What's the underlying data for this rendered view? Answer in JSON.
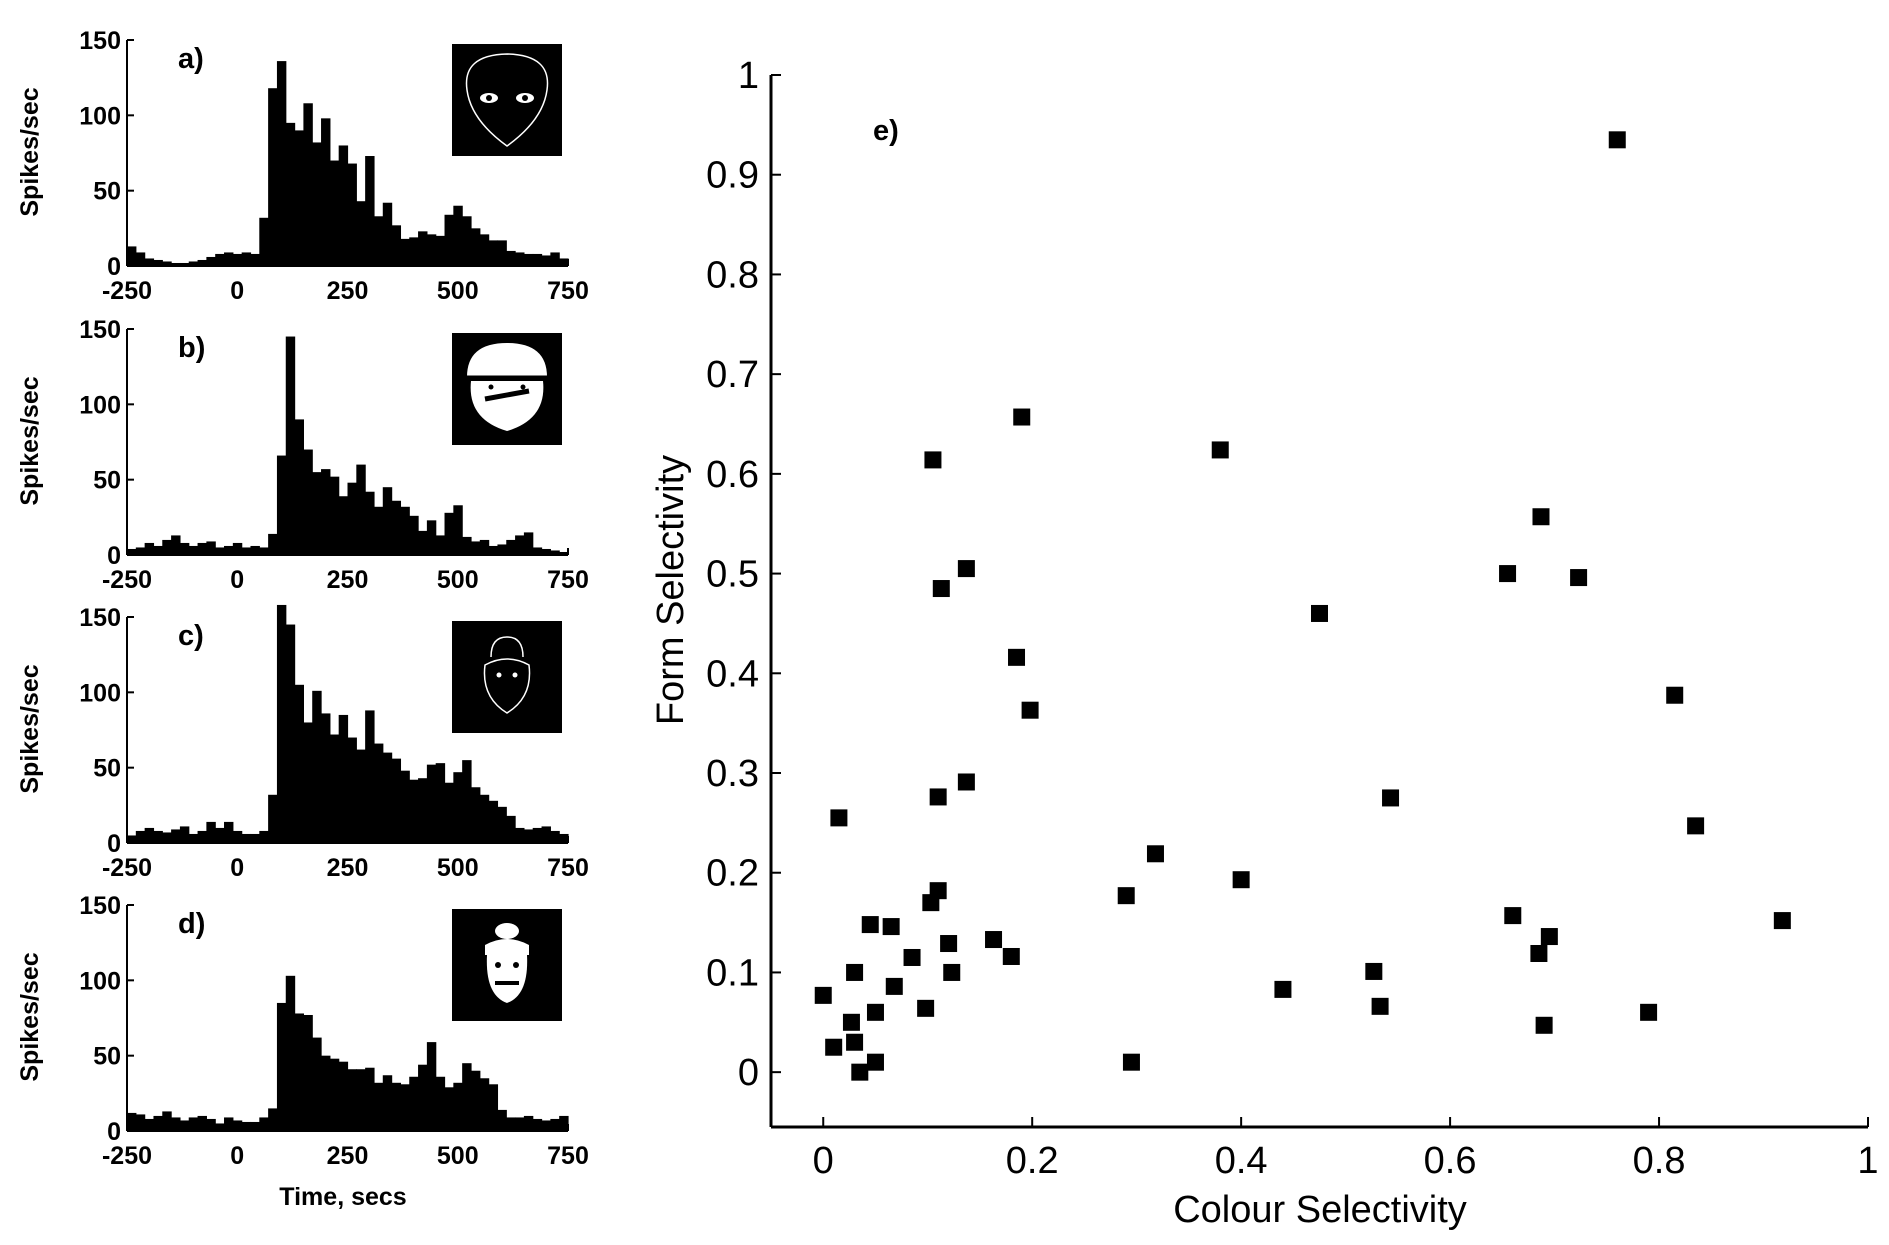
{
  "figure": {
    "histograms": {
      "ylabel": "Spikes/sec",
      "xlabel": "Time, secs",
      "xticks": [
        "-250",
        "0",
        "250",
        "500",
        "750"
      ],
      "yticks": [
        "0",
        "50",
        "100",
        "150"
      ],
      "xlim": [
        -250,
        750
      ],
      "ylim": [
        0,
        150
      ],
      "bin_width": 20
    },
    "scatter": {
      "xlabel": "Colour Selectivity",
      "ylabel": "Form Selectivity",
      "xticks": [
        "0",
        "0.2",
        "0.4",
        "0.6",
        "0.8",
        "1"
      ],
      "yticks": [
        "0",
        "0.1",
        "0.2",
        "0.3",
        "0.4",
        "0.5",
        "0.6",
        "0.7",
        "0.8",
        "0.9",
        "1"
      ],
      "xlim": [
        -0.05,
        1.0
      ],
      "ylim": [
        -0.055,
        1.0
      ]
    }
  },
  "chart_data": [
    {
      "type": "bar",
      "panel_label": "a)",
      "image": "face-outline-with-eyes",
      "x": [
        -250,
        -230,
        -210,
        -190,
        -170,
        -150,
        -130,
        -110,
        -90,
        -70,
        -50,
        -30,
        -10,
        10,
        30,
        50,
        70,
        90,
        110,
        130,
        150,
        170,
        190,
        210,
        230,
        250,
        270,
        290,
        310,
        330,
        350,
        370,
        390,
        410,
        430,
        450,
        470,
        490,
        510,
        530,
        550,
        570,
        590,
        610,
        630,
        650,
        670,
        690,
        710,
        730
      ],
      "values": [
        13,
        9,
        5,
        4,
        3,
        2,
        2,
        3,
        4,
        6,
        8,
        9,
        8,
        9,
        8,
        32,
        118,
        136,
        95,
        90,
        108,
        82,
        98,
        70,
        80,
        68,
        43,
        73,
        33,
        42,
        27,
        18,
        19,
        23,
        21,
        20,
        34,
        40,
        33,
        25,
        21,
        17,
        17,
        10,
        9,
        8,
        8,
        7,
        9,
        5
      ]
    },
    {
      "type": "bar",
      "panel_label": "b)",
      "image": "face-with-hat-and-mouth",
      "x": [
        -250,
        -230,
        -210,
        -190,
        -170,
        -150,
        -130,
        -110,
        -90,
        -70,
        -50,
        -30,
        -10,
        10,
        30,
        50,
        70,
        90,
        110,
        130,
        150,
        170,
        190,
        210,
        230,
        250,
        270,
        290,
        310,
        330,
        350,
        370,
        390,
        410,
        430,
        450,
        470,
        490,
        510,
        530,
        550,
        570,
        590,
        610,
        630,
        650,
        670,
        690,
        710,
        730
      ],
      "values": [
        4,
        5,
        8,
        6,
        10,
        13,
        8,
        6,
        8,
        9,
        5,
        6,
        8,
        5,
        6,
        5,
        14,
        66,
        145,
        90,
        70,
        55,
        57,
        52,
        39,
        48,
        60,
        42,
        32,
        45,
        36,
        32,
        26,
        16,
        23,
        13,
        28,
        33,
        12,
        9,
        10,
        6,
        7,
        10,
        13,
        15,
        5,
        4,
        3,
        2
      ]
    },
    {
      "type": "bar",
      "panel_label": "c)",
      "image": "small-egg-shaped-head",
      "x": [
        -250,
        -230,
        -210,
        -190,
        -170,
        -150,
        -130,
        -110,
        -90,
        -70,
        -50,
        -30,
        -10,
        10,
        30,
        50,
        70,
        90,
        110,
        130,
        150,
        170,
        190,
        210,
        230,
        250,
        270,
        290,
        310,
        330,
        350,
        370,
        390,
        410,
        430,
        450,
        470,
        490,
        510,
        530,
        550,
        570,
        590,
        610,
        630,
        650,
        670,
        690,
        710,
        730
      ],
      "values": [
        5,
        8,
        10,
        8,
        7,
        9,
        11,
        6,
        8,
        14,
        10,
        14,
        8,
        6,
        6,
        8,
        32,
        158,
        145,
        105,
        80,
        101,
        86,
        72,
        85,
        70,
        62,
        88,
        66,
        60,
        56,
        48,
        42,
        43,
        52,
        53,
        40,
        47,
        55,
        37,
        32,
        28,
        24,
        18,
        10,
        9,
        10,
        11,
        8,
        6
      ]
    },
    {
      "type": "bar",
      "panel_label": "d)",
      "image": "head-with-bun-and-mouth",
      "x": [
        -250,
        -230,
        -210,
        -190,
        -170,
        -150,
        -130,
        -110,
        -90,
        -70,
        -50,
        -30,
        -10,
        10,
        30,
        50,
        70,
        90,
        110,
        130,
        150,
        170,
        190,
        210,
        230,
        250,
        270,
        290,
        310,
        330,
        350,
        370,
        390,
        410,
        430,
        450,
        470,
        490,
        510,
        530,
        550,
        570,
        590,
        610,
        630,
        650,
        670,
        690,
        710,
        730
      ],
      "values": [
        12,
        11,
        8,
        10,
        13,
        9,
        7,
        9,
        10,
        8,
        5,
        9,
        7,
        6,
        6,
        9,
        15,
        85,
        103,
        78,
        77,
        62,
        50,
        48,
        46,
        41,
        41,
        42,
        32,
        37,
        32,
        31,
        36,
        44,
        59,
        36,
        29,
        32,
        45,
        40,
        35,
        31,
        14,
        9,
        9,
        10,
        8,
        7,
        8,
        10
      ]
    },
    {
      "type": "scatter",
      "panel_label": "e)",
      "xlabel": "Colour Selectivity",
      "ylabel": "Form Selectivity",
      "points": [
        [
          0.0,
          0.077
        ],
        [
          0.01,
          0.025
        ],
        [
          0.015,
          0.255
        ],
        [
          0.027,
          0.05
        ],
        [
          0.03,
          0.1
        ],
        [
          0.03,
          0.03
        ],
        [
          0.035,
          0.0
        ],
        [
          0.045,
          0.148
        ],
        [
          0.05,
          0.06
        ],
        [
          0.05,
          0.01
        ],
        [
          0.065,
          0.146
        ],
        [
          0.068,
          0.086
        ],
        [
          0.085,
          0.115
        ],
        [
          0.098,
          0.064
        ],
        [
          0.103,
          0.17
        ],
        [
          0.105,
          0.614
        ],
        [
          0.11,
          0.182
        ],
        [
          0.11,
          0.276
        ],
        [
          0.113,
          0.485
        ],
        [
          0.12,
          0.129
        ],
        [
          0.123,
          0.1
        ],
        [
          0.137,
          0.291
        ],
        [
          0.137,
          0.505
        ],
        [
          0.163,
          0.133
        ],
        [
          0.18,
          0.116
        ],
        [
          0.185,
          0.416
        ],
        [
          0.19,
          0.657
        ],
        [
          0.198,
          0.363
        ],
        [
          0.29,
          0.177
        ],
        [
          0.295,
          0.01
        ],
        [
          0.318,
          0.219
        ],
        [
          0.38,
          0.624
        ],
        [
          0.4,
          0.193
        ],
        [
          0.44,
          0.083
        ],
        [
          0.475,
          0.46
        ],
        [
          0.527,
          0.101
        ],
        [
          0.533,
          0.066
        ],
        [
          0.543,
          0.275
        ],
        [
          0.655,
          0.5
        ],
        [
          0.66,
          0.157
        ],
        [
          0.685,
          0.119
        ],
        [
          0.687,
          0.557
        ],
        [
          0.69,
          0.047
        ],
        [
          0.695,
          0.136
        ],
        [
          0.723,
          0.496
        ],
        [
          0.76,
          0.935
        ],
        [
          0.79,
          0.06
        ],
        [
          0.815,
          0.378
        ],
        [
          0.835,
          0.247
        ],
        [
          0.918,
          0.152
        ]
      ]
    }
  ]
}
